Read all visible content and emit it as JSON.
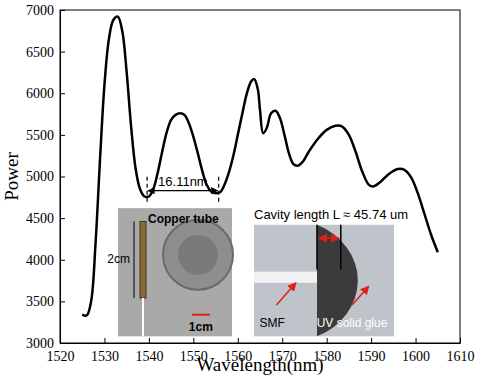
{
  "chart_data": {
    "type": "line",
    "x_label": "Wavelength(nm)",
    "y_label": "Power",
    "xlim": [
      1520,
      1610
    ],
    "xticks": [
      1520,
      1530,
      1540,
      1550,
      1560,
      1570,
      1580,
      1590,
      1600,
      1610
    ],
    "ylim": [
      3000,
      7000
    ],
    "yticks": [
      3000,
      3500,
      4000,
      4500,
      5000,
      5500,
      6000,
      6500,
      7000
    ],
    "grid": false,
    "series": [
      {
        "color": "#000000",
        "x": [
          1525,
          1526,
          1527,
          1528,
          1529,
          1530,
          1531,
          1532,
          1533,
          1534,
          1535,
          1536,
          1537,
          1538,
          1539,
          1540,
          1541,
          1542,
          1543,
          1544,
          1545,
          1546,
          1547,
          1548,
          1549,
          1550,
          1551,
          1552,
          1553,
          1554,
          1555,
          1556,
          1557,
          1558,
          1559,
          1560,
          1561,
          1562,
          1563,
          1563.7,
          1564.5,
          1565,
          1565.7,
          1566.5,
          1567.5,
          1568.5,
          1569.5,
          1570.5,
          1571.5,
          1572.5,
          1573.5,
          1574.5,
          1576,
          1578,
          1580,
          1582,
          1583.5,
          1585,
          1586.5,
          1588,
          1589.5,
          1590.5,
          1592,
          1594,
          1596,
          1597.5,
          1599,
          1600.5,
          1602,
          1603.5,
          1605
        ],
        "values": [
          3340,
          3330,
          3500,
          4200,
          5200,
          6100,
          6650,
          6880,
          6920,
          6750,
          6250,
          5600,
          5100,
          4850,
          4760,
          4760,
          4850,
          5050,
          5300,
          5530,
          5680,
          5740,
          5760,
          5740,
          5640,
          5480,
          5280,
          5070,
          4900,
          4820,
          4800,
          4810,
          4900,
          5050,
          5250,
          5500,
          5750,
          5990,
          6140,
          6170,
          6050,
          5800,
          5520,
          5580,
          5760,
          5790,
          5700,
          5500,
          5280,
          5150,
          5130,
          5170,
          5300,
          5450,
          5560,
          5610,
          5600,
          5500,
          5300,
          5060,
          4900,
          4880,
          4930,
          5030,
          5090,
          5080,
          4990,
          4800,
          4550,
          4300,
          4090
        ]
      }
    ],
    "annotations": [
      {
        "text": "16.11nm",
        "x": [
          1539.6,
          1555.7
        ],
        "y": 4830
      },
      {
        "text": "Copper tube"
      },
      {
        "text": "2cm"
      },
      {
        "text": "1cm"
      },
      {
        "text": "Cavity length L ≈ 45.74 um"
      },
      {
        "text": "SMF"
      },
      {
        "text": "UV solid glue"
      }
    ]
  }
}
